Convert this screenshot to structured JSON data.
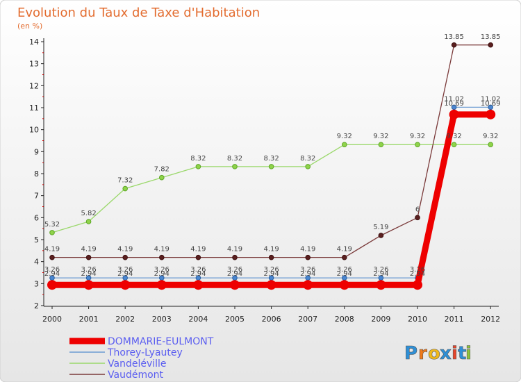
{
  "chart_data": {
    "type": "line",
    "title": "Evolution du Taux de Taxe d'Habitation",
    "subtitle": "(en %)",
    "xlabel": "",
    "ylabel": "",
    "ylim": [
      2,
      14
    ],
    "y_ticks": [
      2,
      3,
      4,
      5,
      6,
      7,
      8,
      9,
      10,
      11,
      12,
      13,
      14
    ],
    "categories": [
      "2000",
      "2001",
      "2002",
      "2003",
      "2004",
      "2005",
      "2006",
      "2007",
      "2008",
      "2009",
      "2010",
      "2011",
      "2012"
    ],
    "series": [
      {
        "name": "DOMMARIE-EULMONT",
        "color": "#ee0000",
        "values": [
          2.94,
          2.94,
          2.94,
          2.94,
          2.94,
          2.94,
          2.94,
          2.94,
          2.94,
          2.94,
          2.94,
          10.69,
          10.69
        ],
        "labels": [
          "2.94",
          "2.94",
          "2.94",
          "2.94",
          "2.94",
          "2.94",
          "2.94",
          "2.94",
          "2.94",
          "2.94",
          "2.94",
          "10.69",
          "10.69"
        ]
      },
      {
        "name": "Thorey-Lyautey",
        "color": "#6c9bd2",
        "values": [
          3.26,
          3.26,
          3.26,
          3.26,
          3.26,
          3.26,
          3.26,
          3.26,
          3.26,
          3.26,
          3.26,
          11.02,
          11.02
        ],
        "labels": [
          "3.26",
          "3.26",
          "3.26",
          "3.26",
          "3.26",
          "3.26",
          "3.26",
          "3.26",
          "3.26",
          "3.26",
          "3.26",
          "11.02",
          "11.02"
        ]
      },
      {
        "name": "Vandeléville",
        "color": "#9ad86a",
        "values": [
          5.32,
          5.82,
          7.32,
          7.82,
          8.32,
          8.32,
          8.32,
          8.32,
          9.32,
          9.32,
          9.32,
          9.32,
          9.32
        ],
        "labels": [
          "5.32",
          "5.82",
          "7.32",
          "7.82",
          "8.32",
          "8.32",
          "8.32",
          "8.32",
          "9.32",
          "9.32",
          "9.32",
          "9.32",
          "9.32"
        ]
      },
      {
        "name": "Vaudémont",
        "color": "#7a3a3a",
        "values": [
          4.19,
          4.19,
          4.19,
          4.19,
          4.19,
          4.19,
          4.19,
          4.19,
          4.19,
          5.19,
          6,
          13.85,
          13.85
        ],
        "labels": [
          "4.19",
          "4.19",
          "4.19",
          "4.19",
          "4.19",
          "4.19",
          "4.19",
          "4.19",
          "4.19",
          "5.19",
          "6",
          "13.85",
          "13.85"
        ]
      }
    ],
    "legend": {
      "placement": "bottom-left",
      "entries": [
        "DOMMARIE-EULMONT",
        "Thorey-Lyautey",
        "Vandeléville",
        "Vaudémont"
      ]
    },
    "grid": false
  },
  "branding": {
    "logo_text": "Proxiti",
    "logo_letters": [
      "P",
      "r",
      "o",
      "x",
      "i",
      "t",
      "i"
    ],
    "logo_colors": [
      "#2e8fd6",
      "#f07a1a",
      "#f0b81a",
      "#2e8fd6",
      "#e8452a",
      "#2e8fd6",
      "#8fc43a"
    ]
  }
}
